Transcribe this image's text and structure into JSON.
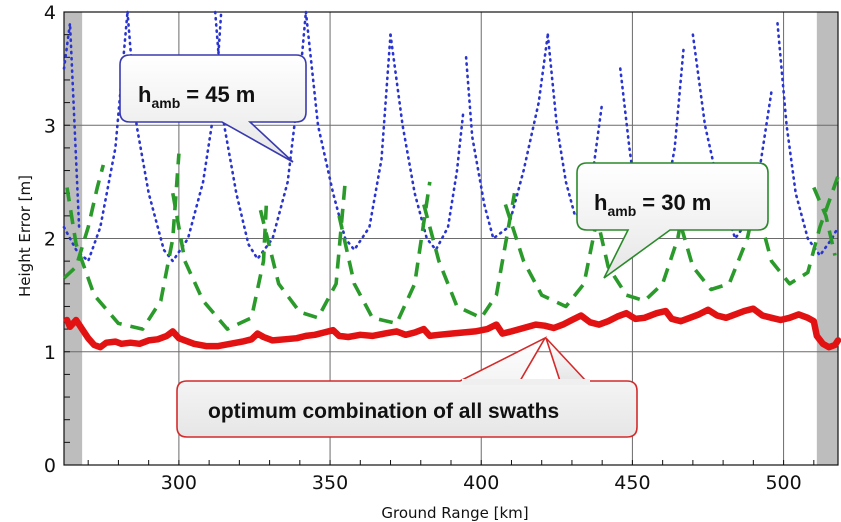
{
  "chart_data": {
    "type": "line",
    "xlabel": "Ground Range [km]",
    "ylabel": "Height Error [m]",
    "xlim": [
      262,
      518
    ],
    "ylim": [
      0,
      4
    ],
    "x_ticks": [
      300,
      350,
      400,
      450,
      500
    ],
    "y_ticks": [
      0,
      1,
      2,
      3,
      4
    ],
    "grid": true,
    "shaded_x_ranges": [
      [
        262,
        268
      ],
      [
        511,
        518
      ]
    ],
    "series": [
      {
        "name": "h_amb = 45 m",
        "color": "#2a35cf",
        "style": "dotted",
        "segments": [
          [
            [
              262,
              3.5
            ],
            [
              264,
              3.9
            ],
            [
              267,
              2.1
            ]
          ],
          [
            [
              262,
              2.1
            ],
            [
              266,
              1.9
            ],
            [
              270,
              1.8
            ],
            [
              274,
              2.1
            ],
            [
              279,
              2.8
            ],
            [
              283,
              4.0
            ]
          ],
          [
            [
              283,
              4.0
            ],
            [
              286,
              3.0
            ],
            [
              290,
              2.4
            ],
            [
              295,
              1.9
            ],
            [
              298,
              1.8
            ],
            [
              303,
              2.0
            ],
            [
              308,
              2.5
            ],
            [
              312,
              3.2
            ],
            [
              314,
              4.0
            ]
          ],
          [
            [
              312,
              4.0
            ],
            [
              315,
              3.0
            ],
            [
              319,
              2.4
            ],
            [
              323,
              1.95
            ],
            [
              326,
              1.82
            ],
            [
              331,
              2.0
            ],
            [
              336,
              2.5
            ],
            [
              340,
              3.4
            ],
            [
              342,
              4.0
            ]
          ],
          [
            [
              342,
              4.0
            ],
            [
              346,
              3.0
            ],
            [
              351,
              2.4
            ],
            [
              355,
              2.0
            ],
            [
              358,
              1.9
            ],
            [
              363,
              2.1
            ],
            [
              367,
              2.7
            ],
            [
              370,
              3.8
            ]
          ],
          [
            [
              370,
              3.8
            ],
            [
              374,
              3.0
            ],
            [
              378,
              2.4
            ],
            [
              382,
              2.0
            ],
            [
              385,
              1.9
            ],
            [
              389,
              2.1
            ],
            [
              392,
              2.6
            ],
            [
              394,
              3.1
            ]
          ],
          [
            [
              395,
              3.6
            ],
            [
              397,
              2.9
            ],
            [
              401,
              2.3
            ],
            [
              404,
              2.0
            ],
            [
              409,
              2.1
            ],
            [
              414,
              2.6
            ],
            [
              419,
              3.2
            ],
            [
              422,
              3.8
            ]
          ],
          [
            [
              422,
              3.8
            ],
            [
              425,
              3.0
            ],
            [
              428,
              2.5
            ],
            [
              431,
              2.2
            ],
            [
              434,
              2.25
            ],
            [
              437,
              2.6
            ],
            [
              440,
              3.2
            ]
          ],
          [
            [
              446,
              3.5
            ],
            [
              449,
              2.8
            ],
            [
              452,
              2.2
            ],
            [
              456,
              2.0
            ],
            [
              460,
              2.2
            ],
            [
              464,
              2.8
            ],
            [
              467,
              3.7
            ]
          ],
          [
            [
              470,
              3.8
            ],
            [
              474,
              3.0
            ],
            [
              479,
              2.4
            ],
            [
              484,
              2.0
            ],
            [
              488,
              2.15
            ],
            [
              492,
              2.6
            ],
            [
              496,
              3.3
            ]
          ],
          [
            [
              498,
              3.9
            ],
            [
              501,
              3.0
            ],
            [
              504,
              2.4
            ],
            [
              508,
              2.0
            ],
            [
              512,
              1.85
            ],
            [
              516,
              2.0
            ],
            [
              518,
              2.1
            ]
          ]
        ]
      },
      {
        "name": "h_amb = 30 m",
        "color": "#2a9a2a",
        "style": "dashed",
        "segments": [
          [
            [
              262,
              1.65
            ],
            [
              266,
              1.75
            ],
            [
              270,
              2.1
            ],
            [
              273,
              2.45
            ],
            [
              275,
              2.65
            ]
          ],
          [
            [
              263,
              2.45
            ],
            [
              266,
              1.95
            ],
            [
              272,
              1.5
            ],
            [
              280,
              1.25
            ],
            [
              288,
              1.2
            ],
            [
              294,
              1.45
            ],
            [
              298,
              2.0
            ],
            [
              300,
              2.75
            ]
          ],
          [
            [
              298,
              2.4
            ],
            [
              302,
              1.8
            ],
            [
              308,
              1.45
            ],
            [
              316,
              1.2
            ],
            [
              324,
              1.3
            ],
            [
              328,
              1.8
            ],
            [
              329,
              2.35
            ]
          ],
          [
            [
              327,
              2.25
            ],
            [
              333,
              1.6
            ],
            [
              340,
              1.35
            ],
            [
              346,
              1.3
            ],
            [
              352,
              1.6
            ],
            [
              355,
              2.5
            ]
          ],
          [
            [
              353,
              2.2
            ],
            [
              358,
              1.6
            ],
            [
              364,
              1.3
            ],
            [
              372,
              1.25
            ],
            [
              378,
              1.6
            ],
            [
              383,
              2.5
            ]
          ],
          [
            [
              381,
              2.3
            ],
            [
              386,
              1.8
            ],
            [
              392,
              1.4
            ],
            [
              400,
              1.3
            ],
            [
              405,
              1.5
            ],
            [
              411,
              2.4
            ]
          ],
          [
            [
              408,
              2.3
            ],
            [
              414,
              1.8
            ],
            [
              420,
              1.5
            ],
            [
              428,
              1.4
            ],
            [
              434,
              1.6
            ],
            [
              440,
              2.4
            ]
          ],
          [
            [
              436,
              2.45
            ],
            [
              442,
              1.75
            ],
            [
              448,
              1.5
            ],
            [
              454,
              1.45
            ],
            [
              460,
              1.6
            ],
            [
              465,
              2.0
            ],
            [
              468,
              2.45
            ]
          ],
          [
            [
              464,
              2.3
            ],
            [
              470,
              1.75
            ],
            [
              476,
              1.55
            ],
            [
              482,
              1.6
            ],
            [
              488,
              2.0
            ],
            [
              493,
              2.6
            ]
          ],
          [
            [
              490,
              2.4
            ],
            [
              496,
              1.8
            ],
            [
              502,
              1.6
            ],
            [
              508,
              1.7
            ],
            [
              512,
              2.1
            ],
            [
              518,
              2.55
            ]
          ],
          [
            [
              510,
              2.45
            ],
            [
              514,
              2.2
            ],
            [
              517,
              1.85
            ]
          ]
        ]
      },
      {
        "name": "optimum combination of all swaths",
        "color": "#e31212",
        "style": "solid",
        "points": [
          [
            263,
            1.28
          ],
          [
            264,
            1.22
          ],
          [
            266,
            1.28
          ],
          [
            268,
            1.2
          ],
          [
            270,
            1.12
          ],
          [
            272,
            1.06
          ],
          [
            274,
            1.04
          ],
          [
            276,
            1.08
          ],
          [
            279,
            1.09
          ],
          [
            281,
            1.07
          ],
          [
            284,
            1.08
          ],
          [
            287,
            1.07
          ],
          [
            290,
            1.1
          ],
          [
            293,
            1.11
          ],
          [
            296,
            1.14
          ],
          [
            298,
            1.18
          ],
          [
            300,
            1.12
          ],
          [
            302,
            1.1
          ],
          [
            305,
            1.07
          ],
          [
            309,
            1.05
          ],
          [
            313,
            1.05
          ],
          [
            317,
            1.07
          ],
          [
            321,
            1.09
          ],
          [
            324,
            1.11
          ],
          [
            326,
            1.16
          ],
          [
            328,
            1.13
          ],
          [
            331,
            1.1
          ],
          [
            335,
            1.11
          ],
          [
            339,
            1.12
          ],
          [
            342,
            1.14
          ],
          [
            345,
            1.15
          ],
          [
            348,
            1.17
          ],
          [
            351,
            1.19
          ],
          [
            353,
            1.14
          ],
          [
            356,
            1.13
          ],
          [
            360,
            1.15
          ],
          [
            364,
            1.14
          ],
          [
            368,
            1.16
          ],
          [
            372,
            1.18
          ],
          [
            375,
            1.15
          ],
          [
            378,
            1.17
          ],
          [
            381,
            1.2
          ],
          [
            383,
            1.14
          ],
          [
            386,
            1.15
          ],
          [
            390,
            1.16
          ],
          [
            394,
            1.17
          ],
          [
            398,
            1.18
          ],
          [
            402,
            1.2
          ],
          [
            405,
            1.24
          ],
          [
            407,
            1.16
          ],
          [
            410,
            1.18
          ],
          [
            414,
            1.21
          ],
          [
            418,
            1.24
          ],
          [
            421,
            1.23
          ],
          [
            424,
            1.21
          ],
          [
            427,
            1.24
          ],
          [
            430,
            1.28
          ],
          [
            433,
            1.32
          ],
          [
            436,
            1.26
          ],
          [
            439,
            1.24
          ],
          [
            442,
            1.27
          ],
          [
            445,
            1.31
          ],
          [
            448,
            1.34
          ],
          [
            451,
            1.29
          ],
          [
            454,
            1.3
          ],
          [
            458,
            1.34
          ],
          [
            461,
            1.36
          ],
          [
            463,
            1.29
          ],
          [
            466,
            1.27
          ],
          [
            469,
            1.3
          ],
          [
            472,
            1.33
          ],
          [
            475,
            1.37
          ],
          [
            478,
            1.32
          ],
          [
            481,
            1.3
          ],
          [
            484,
            1.33
          ],
          [
            487,
            1.36
          ],
          [
            490,
            1.38
          ],
          [
            493,
            1.32
          ],
          [
            496,
            1.3
          ],
          [
            499,
            1.28
          ],
          [
            502,
            1.3
          ],
          [
            505,
            1.33
          ],
          [
            508,
            1.3
          ],
          [
            510,
            1.27
          ],
          [
            511,
            1.14
          ],
          [
            513,
            1.07
          ],
          [
            515,
            1.04
          ],
          [
            517,
            1.06
          ],
          [
            518,
            1.1
          ]
        ]
      }
    ],
    "annotations": [
      {
        "id": "callout-45",
        "text": "h",
        "subscript": "amb",
        "suffix": "= 45 m",
        "border_color": "#3a3ab0"
      },
      {
        "id": "callout-30",
        "text": "h",
        "subscript": "amb",
        "suffix": "= 30 m",
        "border_color": "#2a8a2a"
      },
      {
        "id": "callout-optimum",
        "text": "optimum combination of all swaths",
        "border_color": "#d42a2a"
      }
    ]
  }
}
